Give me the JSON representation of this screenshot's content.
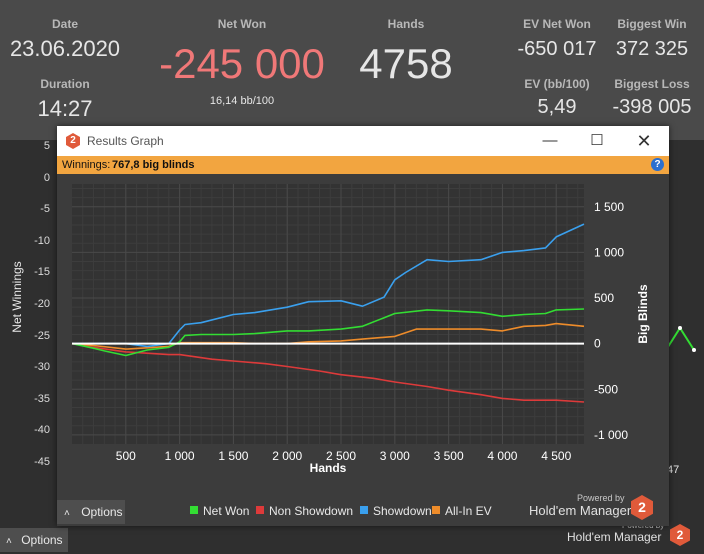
{
  "stats": {
    "date_label": "Date",
    "date_value": "23.06.2020",
    "duration_label": "Duration",
    "duration_value": "14:27",
    "net_won_label": "Net Won",
    "net_won_value": "-245 000",
    "bb_per_100": "16,14 bb/100",
    "hands_label": "Hands",
    "hands_value": "4758",
    "ev_net_won_label": "EV Net Won",
    "ev_net_won_value": "-650 017",
    "biggest_win_label": "Biggest Win",
    "biggest_win_value": "372 325",
    "ev_bb100_label": "EV (bb/100)",
    "ev_bb100_value": "5,49",
    "biggest_loss_label": "Biggest Loss",
    "biggest_loss_value": "-398 005"
  },
  "background_chart": {
    "ylabel": "Net Winnings",
    "yticks": [
      "5",
      "0",
      "-5",
      "-10",
      "-15",
      "-20",
      "-25",
      "-30",
      "-35",
      "-40",
      "-45"
    ],
    "right_tick": "47",
    "options_label": "Options",
    "brand_powered": "Powered by",
    "brand_name": "Hold'em Manager",
    "brand_logo": "2"
  },
  "window": {
    "title": "Results Graph",
    "icon_text": "2",
    "winnings_prefix": "Winnings:",
    "winnings_value": "767,8 big blinds",
    "help_icon": "?",
    "options_label": "Options",
    "brand_powered": "Powered by",
    "brand_name": "Hold'em Manager",
    "brand_logo": "2"
  },
  "colors": {
    "net_won": "#33dd33",
    "non_showdown": "#dd3a3a",
    "showdown": "#3aa0ee",
    "all_in_ev": "#ee8c2a",
    "orange_bar": "#f2a540",
    "net_won_big": "#f07878"
  },
  "chart_data": {
    "type": "line",
    "xlabel": "Hands",
    "ylabel": "Big Blinds",
    "xlim": [
      0,
      4758
    ],
    "ylim": [
      -1100,
      1750
    ],
    "xticks": [
      500,
      1000,
      1500,
      2000,
      2500,
      3000,
      3500,
      4000,
      4500
    ],
    "xtick_labels": [
      "500",
      "1 000",
      "1 500",
      "2 000",
      "2 500",
      "3 000",
      "3 500",
      "4 000",
      "4 500"
    ],
    "yticks": [
      -1000,
      -500,
      0,
      500,
      1000,
      1500
    ],
    "ytick_labels": [
      "-1 000",
      "-500",
      "0",
      "500",
      "1 000",
      "1 500"
    ],
    "grid": true,
    "legend_position": "bottom",
    "series": [
      {
        "name": "Net Won",
        "color": "#33dd33",
        "x": [
          0,
          200,
          300,
          500,
          700,
          900,
          1000,
          1050,
          1200,
          1500,
          1700,
          2000,
          2200,
          2500,
          2700,
          3000,
          3300,
          3500,
          3800,
          4000,
          4200,
          4400,
          4500,
          4758
        ],
        "y": [
          0,
          -50,
          -80,
          -130,
          -70,
          -40,
          20,
          90,
          100,
          100,
          110,
          140,
          140,
          160,
          190,
          330,
          370,
          360,
          340,
          300,
          320,
          330,
          370,
          380
        ]
      },
      {
        "name": "Non Showdown",
        "color": "#dd3a3a",
        "x": [
          0,
          200,
          500,
          900,
          1000,
          1300,
          1500,
          1800,
          2000,
          2300,
          2500,
          2800,
          3000,
          3300,
          3500,
          3800,
          4000,
          4200,
          4500,
          4758
        ],
        "y": [
          0,
          -40,
          -90,
          -120,
          -120,
          -170,
          -190,
          -220,
          -250,
          -300,
          -340,
          -380,
          -420,
          -470,
          -510,
          -560,
          -600,
          -620,
          -620,
          -640
        ]
      },
      {
        "name": "Showdown",
        "color": "#3aa0ee",
        "x": [
          0,
          300,
          500,
          700,
          900,
          1000,
          1050,
          1200,
          1500,
          1700,
          2000,
          2200,
          2500,
          2700,
          2900,
          3000,
          3100,
          3300,
          3500,
          3800,
          4000,
          4200,
          4400,
          4500,
          4758
        ],
        "y": [
          0,
          0,
          0,
          -30,
          0,
          150,
          210,
          230,
          320,
          340,
          400,
          460,
          470,
          410,
          510,
          700,
          780,
          920,
          900,
          920,
          1000,
          1020,
          1050,
          1170,
          1310
        ]
      },
      {
        "name": "All-In EV",
        "color": "#ee8c2a",
        "x": [
          0,
          200,
          500,
          900,
          1000,
          1050,
          1200,
          1500,
          1700,
          2000,
          2200,
          2500,
          2700,
          3000,
          3200,
          3500,
          3800,
          4000,
          4200,
          4400,
          4500,
          4758
        ],
        "y": [
          0,
          -20,
          -60,
          -30,
          10,
          10,
          10,
          10,
          0,
          0,
          20,
          30,
          50,
          80,
          160,
          160,
          160,
          140,
          190,
          200,
          220,
          190
        ]
      }
    ]
  },
  "background_chart_data": {
    "type": "line",
    "ylabel": "Net Winnings",
    "ylim": [
      -45,
      5
    ],
    "yticks": [
      5,
      0,
      -5,
      -10,
      -15,
      -20,
      -25,
      -30,
      -35,
      -40,
      -45
    ]
  }
}
